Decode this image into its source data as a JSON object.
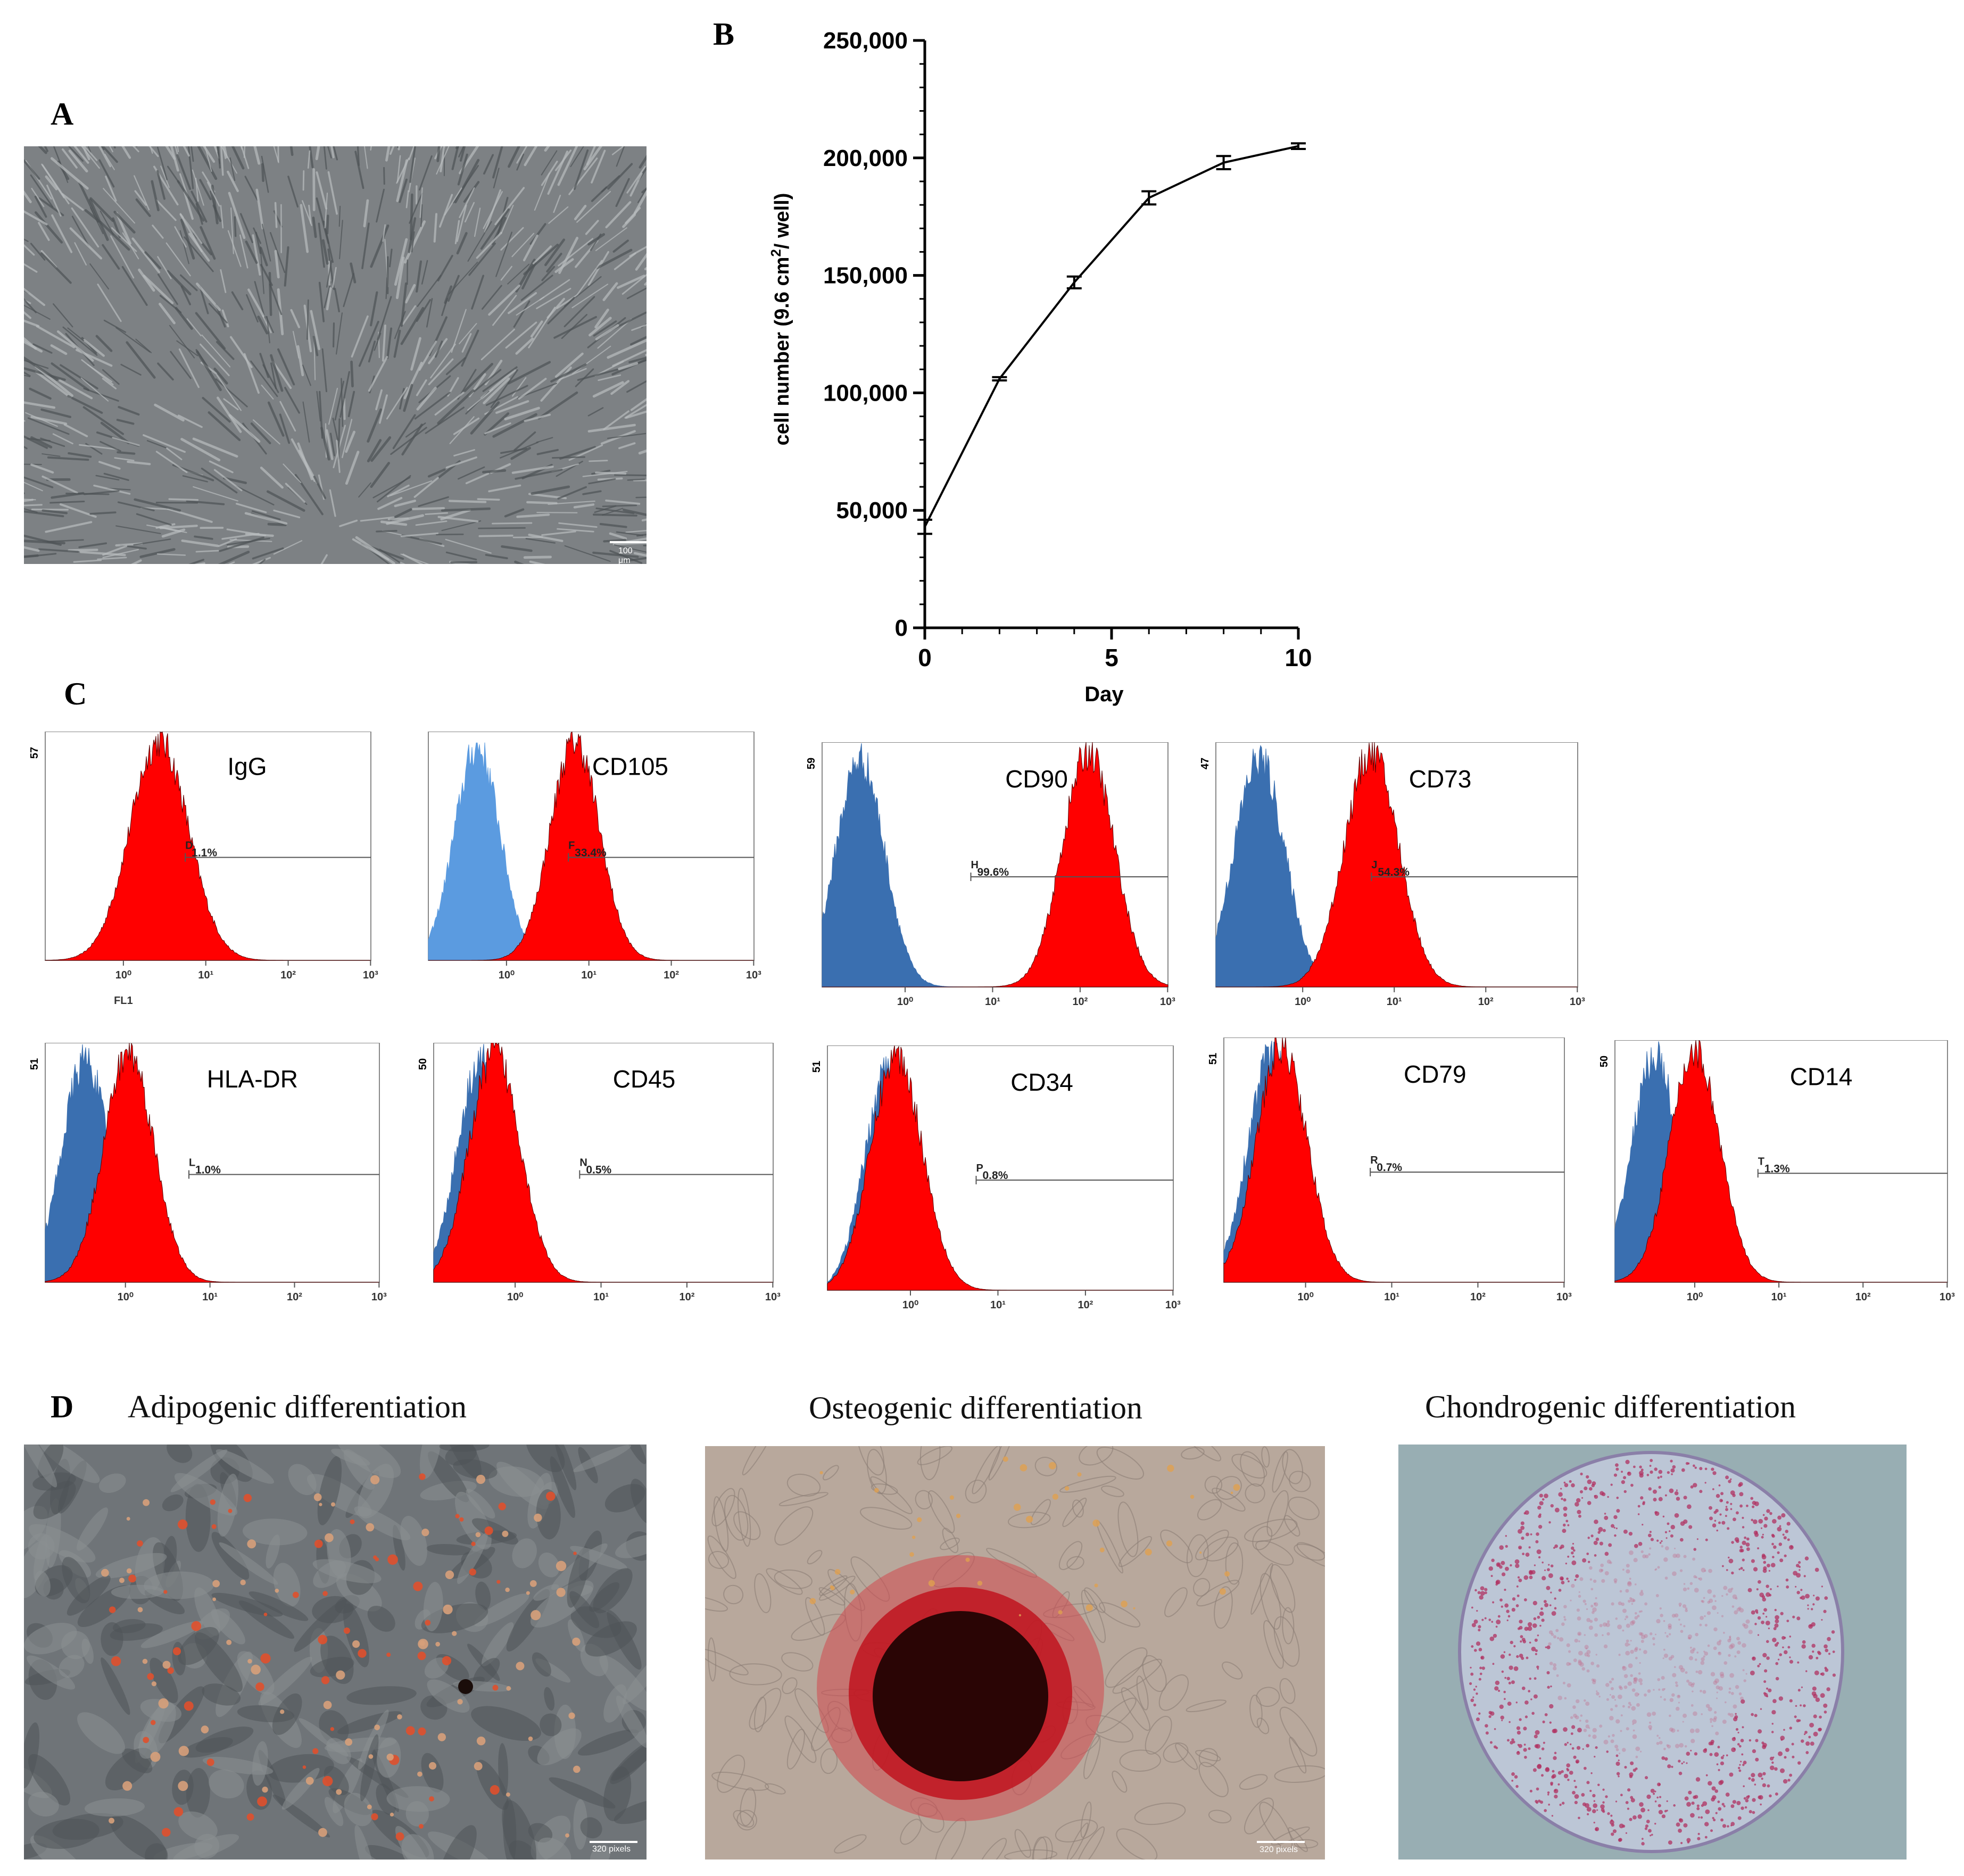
{
  "panels": {
    "A": "A",
    "B": "B",
    "C": "C",
    "D": "D"
  },
  "micrograph_a": {
    "scale_label": "100 μm"
  },
  "chart_data": {
    "type": "line",
    "x": [
      0,
      2,
      4,
      6,
      8,
      10
    ],
    "values": [
      43000,
      106000,
      147000,
      183000,
      198000,
      205000
    ],
    "error": [
      3000,
      700,
      2500,
      2800,
      2800,
      1200
    ],
    "xlabel": "Day",
    "ylabel": "cell number (9.6 cm",
    "ylabel_sup": "2",
    "ylabel_end": "/ well)",
    "xlim": [
      0,
      10
    ],
    "ylim": [
      0,
      250000
    ],
    "xticks": [
      0,
      5,
      10
    ],
    "yticks": [
      0,
      50000,
      100000,
      150000,
      200000,
      250000
    ],
    "ytick_labels": [
      "0",
      "50,000",
      "100,000",
      "150,000",
      "200,000",
      "250,000"
    ],
    "xtick_labels": [
      "0",
      "5",
      "10"
    ],
    "grid": false
  },
  "flow_panels": [
    {
      "marker": "IgG",
      "gate": "D",
      "percent": "1.1%",
      "ymax": "57",
      "xlabel": "FL1",
      "decades": [
        "10⁰",
        "10¹",
        "10²",
        "10³"
      ],
      "iso_peak": null,
      "stain_peak": 0.35
    },
    {
      "marker": "CD105",
      "gate": "F",
      "percent": "33.4%",
      "ymax": "",
      "xlabel": "",
      "decades": [
        "10⁰",
        "10¹",
        "10²",
        "10³"
      ],
      "iso_peak": 0.15,
      "stain_peak": 0.45
    },
    {
      "marker": "CD90",
      "gate": "H",
      "percent": "99.6%",
      "ymax": "59",
      "xlabel": "",
      "decades": [
        "10⁰",
        "10¹",
        "10²",
        "10³"
      ],
      "iso_peak": 0.11,
      "stain_peak": 0.77
    },
    {
      "marker": "CD73",
      "gate": "J",
      "percent": "54.3%",
      "ymax": "47",
      "xlabel": "",
      "decades": [
        "10⁰",
        "10¹",
        "10²",
        "10³"
      ],
      "iso_peak": 0.12,
      "stain_peak": 0.43
    },
    {
      "marker": "HLA-DR",
      "gate": "L",
      "percent": "1.0%",
      "ymax": "51",
      "xlabel": "",
      "decades": [
        "10⁰",
        "10¹",
        "10²",
        "10³"
      ],
      "iso_peak": 0.12,
      "stain_peak": 0.25
    },
    {
      "marker": "CD45",
      "gate": "N",
      "percent": "0.5%",
      "ymax": "50",
      "xlabel": "",
      "decades": [
        "10⁰",
        "10¹",
        "10²",
        "10³"
      ],
      "iso_peak": 0.14,
      "stain_peak": 0.18
    },
    {
      "marker": "CD34",
      "gate": "P",
      "percent": "0.8%",
      "ymax": "51",
      "xlabel": "",
      "decades": [
        "10⁰",
        "10¹",
        "10²",
        "10³"
      ],
      "iso_peak": 0.18,
      "stain_peak": 0.2
    },
    {
      "marker": "CD79",
      "gate": "R",
      "percent": "0.7%",
      "ymax": "51",
      "xlabel": "",
      "decades": [
        "10⁰",
        "10¹",
        "10²",
        "10³"
      ],
      "iso_peak": 0.14,
      "stain_peak": 0.17
    },
    {
      "marker": "CD14",
      "gate": "T",
      "percent": "1.3%",
      "ymax": "50",
      "xlabel": "",
      "decades": [
        "10⁰",
        "10¹",
        "10²",
        "10³"
      ],
      "iso_peak": 0.12,
      "stain_peak": 0.24
    }
  ],
  "differentiation": [
    {
      "title": "Adipogenic differentiation",
      "scale_label": "320 pixels"
    },
    {
      "title": "Osteogenic differentiation",
      "scale_label": "320 pixels"
    },
    {
      "title": "Chondrogenic differentiation",
      "scale_label": ""
    }
  ],
  "colors": {
    "isotype": "#3a6fb0",
    "isotype_light": "#5b9be0",
    "stained": "#ff0000",
    "micro_bg": "#7e8285"
  }
}
